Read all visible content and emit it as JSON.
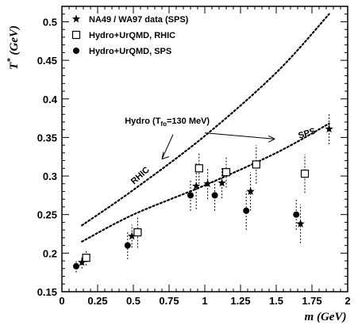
{
  "chart_data": {
    "type": "scatter",
    "xlabel": "m (GeV)",
    "ylabel": "T* (GeV)",
    "xlim": [
      0,
      2
    ],
    "ylim": [
      0.15,
      0.52
    ],
    "x_ticks": [
      "0",
      "0.25",
      "0.5",
      "0.75",
      "1",
      "1.25",
      "1.5",
      "1.75",
      "2"
    ],
    "y_ticks": [
      "0.15",
      "0.2",
      "0.25",
      "0.3",
      "0.35",
      "0.4",
      "0.45",
      "0.5"
    ],
    "legend": [
      {
        "marker": "star",
        "label": "NA49 / WA97 data (SPS)"
      },
      {
        "marker": "open-square",
        "label": "Hydro+UrQMD, RHIC"
      },
      {
        "marker": "filled-circle",
        "label": "Hydro+UrQMD, SPS"
      }
    ],
    "series": [
      {
        "marker": "star",
        "points": [
          {
            "x": 0.14,
            "y": 0.188,
            "err": 0.008
          },
          {
            "x": 0.49,
            "y": 0.222,
            "err": 0.015
          },
          {
            "x": 0.94,
            "y": 0.287,
            "err": 0.03
          },
          {
            "x": 1.02,
            "y": 0.29,
            "err": 0.02
          },
          {
            "x": 1.12,
            "y": 0.291,
            "err": 0.02
          },
          {
            "x": 1.32,
            "y": 0.28,
            "err": 0.025
          },
          {
            "x": 1.67,
            "y": 0.238,
            "err": 0.025
          },
          {
            "x": 1.87,
            "y": 0.361,
            "err": 0.02
          }
        ]
      },
      {
        "marker": "open-square",
        "points": [
          {
            "x": 0.17,
            "y": 0.194,
            "err": 0.01
          },
          {
            "x": 0.53,
            "y": 0.227,
            "err": 0.02
          },
          {
            "x": 0.96,
            "y": 0.31,
            "err": 0.02
          },
          {
            "x": 1.15,
            "y": 0.305,
            "err": 0.02
          },
          {
            "x": 1.36,
            "y": 0.315,
            "err": 0.025
          },
          {
            "x": 1.7,
            "y": 0.303,
            "err": 0.025
          }
        ]
      },
      {
        "marker": "filled-circle",
        "points": [
          {
            "x": 0.1,
            "y": 0.183,
            "err": 0.008
          },
          {
            "x": 0.46,
            "y": 0.21,
            "err": 0.018
          },
          {
            "x": 0.9,
            "y": 0.275,
            "err": 0.02
          },
          {
            "x": 1.07,
            "y": 0.275,
            "err": 0.02
          },
          {
            "x": 1.29,
            "y": 0.255,
            "err": 0.025
          },
          {
            "x": 1.64,
            "y": 0.25,
            "err": 0.02
          }
        ]
      }
    ],
    "curves": [
      {
        "name": "RHIC",
        "x": [
          0.14,
          0.5,
          1.0,
          1.5,
          1.87
        ],
        "y": [
          0.236,
          0.282,
          0.352,
          0.434,
          0.51
        ]
      },
      {
        "name": "SPS",
        "x": [
          0.14,
          0.5,
          1.0,
          1.5,
          1.87
        ],
        "y": [
          0.215,
          0.25,
          0.288,
          0.33,
          0.368
        ]
      }
    ],
    "annotations": {
      "hydro_label": "Hydro (T",
      "hydro_sub": "fo",
      "hydro_tail": "=130 MeV)",
      "rhic_label": "RHIC",
      "sps_label": "SPS"
    }
  }
}
